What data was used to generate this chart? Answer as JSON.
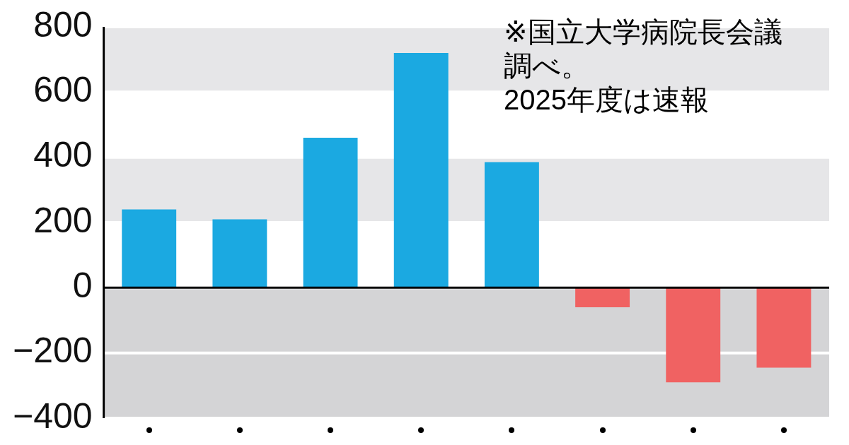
{
  "chart_data": {
    "type": "bar",
    "categories": [
      null,
      null,
      null,
      null,
      null,
      null,
      null,
      null
    ],
    "values": [
      240,
      210,
      460,
      720,
      385,
      -60,
      -290,
      -245
    ],
    "colors": [
      "#1ba9e1",
      "#1ba9e1",
      "#1ba9e1",
      "#1ba9e1",
      "#1ba9e1",
      "#f06262",
      "#f06262",
      "#f06262"
    ],
    "ylim": [
      -400,
      800
    ],
    "yticks": [
      {
        "value": -400,
        "label": "−400"
      },
      {
        "value": -200,
        "label": "−200"
      },
      0,
      200,
      400,
      600,
      800
    ],
    "grid": "y",
    "bands": [
      {
        "axis": "y",
        "from": 200,
        "to": 400,
        "color": "#e6e6e8"
      },
      {
        "axis": "y",
        "from": 600,
        "to": 800,
        "color": "#e6e6e8"
      },
      {
        "axis": "y",
        "from": -400,
        "to": 0,
        "color": "#d4d4d6"
      }
    ],
    "ref_lines": [
      {
        "axis": "y",
        "value": 0,
        "color": "#000000"
      }
    ],
    "annotations": [
      "※国立大学病院長会議調べ。2025年度は速報"
    ]
  }
}
